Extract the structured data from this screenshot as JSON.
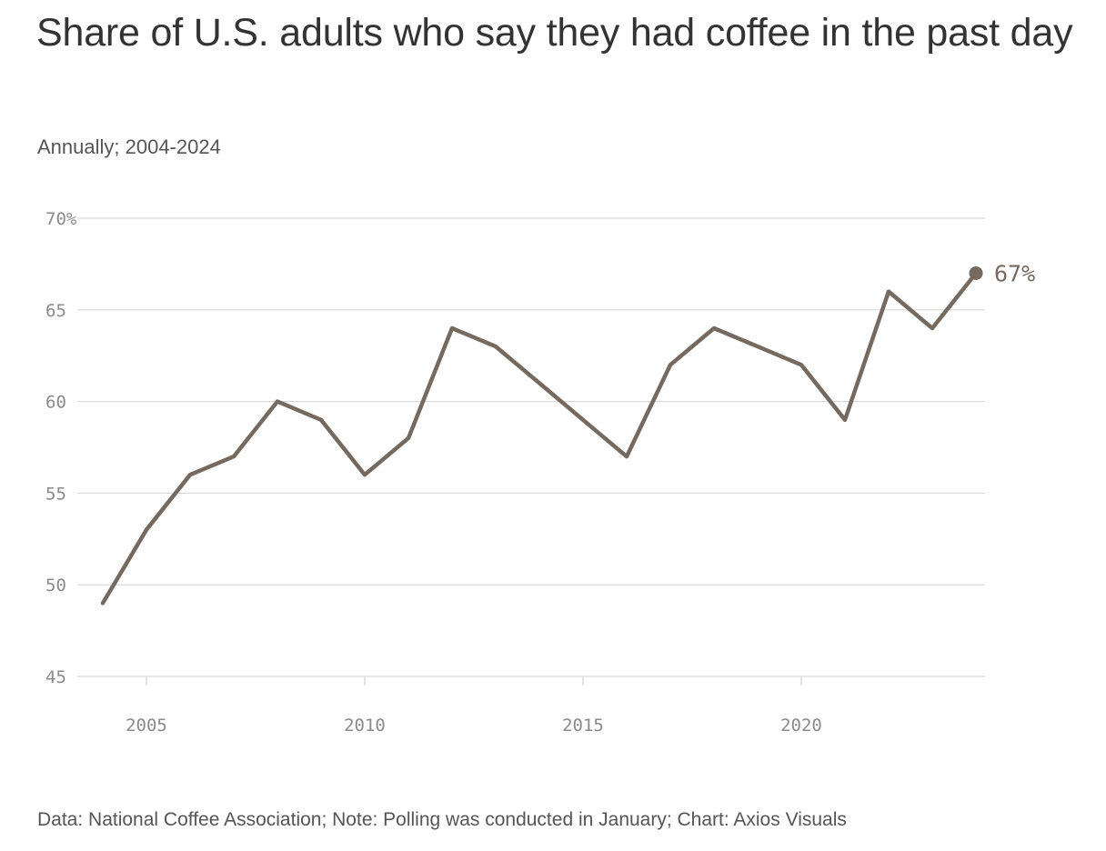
{
  "header": {
    "title": "Share of U.S. adults who say they had coffee in the past day",
    "subtitle": "Annually; 2004-2024"
  },
  "footer": {
    "source": "Data: National Coffee Association; Note: Polling was conducted in January; Chart: Axios Visuals"
  },
  "colors": {
    "line": "#76695f",
    "grid": "#d9d9d9",
    "tick_text": "#8a8a8a",
    "text": "#333333"
  },
  "chart_data": {
    "type": "line",
    "title": "Share of U.S. adults who say they had coffee in the past day",
    "subtitle": "Annually; 2004-2024",
    "x": [
      2004,
      2005,
      2006,
      2007,
      2008,
      2009,
      2010,
      2011,
      2012,
      2013,
      2014,
      2015,
      2016,
      2017,
      2018,
      2019,
      2020,
      2021,
      2022,
      2023,
      2024
    ],
    "series": [
      {
        "values": [
          49,
          53,
          56,
          57,
          60,
          59,
          56,
          58,
          64,
          63,
          61,
          59,
          57,
          62,
          64,
          63,
          62,
          59,
          66,
          64,
          67
        ]
      }
    ],
    "xlim": [
      2004,
      2024
    ],
    "ylim": [
      45,
      70
    ],
    "x_ticks": [
      2005,
      2010,
      2015,
      2020
    ],
    "x_tick_labels": [
      "2005",
      "2010",
      "2015",
      "2020"
    ],
    "y_ticks": [
      45,
      50,
      55,
      60,
      65,
      70
    ],
    "y_tick_labels": [
      "45",
      "50",
      "55",
      "60",
      "65",
      "70%"
    ],
    "end_label": "67%",
    "grid": true,
    "xlabel": "",
    "ylabel": ""
  }
}
